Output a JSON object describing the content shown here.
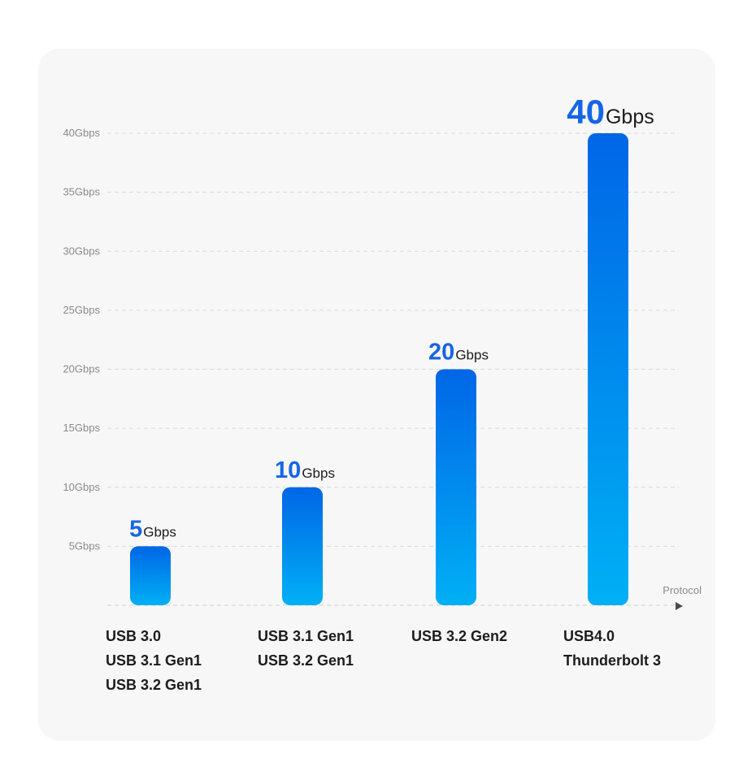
{
  "chart_data": {
    "type": "bar",
    "categories": [
      [
        "USB 3.0",
        "USB 3.1 Gen1",
        "USB 3.2 Gen1"
      ],
      [
        "USB 3.1 Gen1",
        "USB 3.2 Gen1"
      ],
      [
        "USB 3.2 Gen2"
      ],
      [
        "USB4.0",
        "Thunderbolt 3"
      ]
    ],
    "values": [
      5,
      10,
      20,
      40
    ],
    "value_labels": [
      {
        "number": "5",
        "unit": "Gbps"
      },
      {
        "number": "10",
        "unit": "Gbps"
      },
      {
        "number": "20",
        "unit": "Gbps"
      },
      {
        "number": "40",
        "unit": "Gbps"
      }
    ],
    "y_ticks": [
      5,
      10,
      15,
      20,
      25,
      30,
      35,
      40
    ],
    "y_tick_labels": [
      "5Gbps",
      "10Gbps",
      "15Gbps",
      "20Gbps",
      "25Gbps",
      "30Gbps",
      "35Gbps",
      "40Gbps"
    ],
    "ylim": [
      0,
      40
    ],
    "xlabel": "Protocol",
    "grid": true,
    "colors": {
      "bar_top": "#0066e6",
      "bar_bottom": "#00b0f5",
      "value_number": "#1565e6",
      "grid": "#d9d9d9",
      "card_background": "#f7f7f8"
    }
  }
}
